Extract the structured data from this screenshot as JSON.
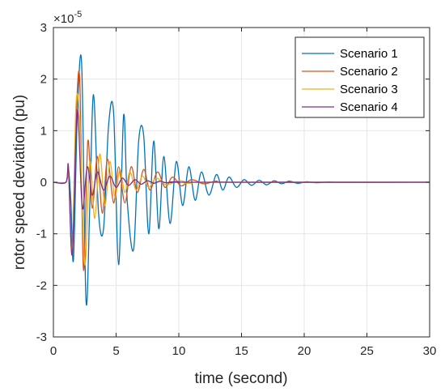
{
  "chart_data": {
    "type": "line",
    "xlabel": "time (second)",
    "ylabel": "rotor speed deviation (pu)",
    "exponent_label": "×10",
    "exponent_power": "-5",
    "xlim": [
      0,
      30
    ],
    "ylim": [
      -3,
      3
    ],
    "xticks": [
      "0",
      "5",
      "10",
      "15",
      "20",
      "25",
      "30"
    ],
    "yticks": [
      "-3",
      "-2",
      "-1",
      "0",
      "1",
      "2",
      "3"
    ],
    "grid": true,
    "legend_position": "top-right",
    "series": [
      {
        "name": "Scenario 1",
        "color": "#0072BD",
        "x": [
          0,
          1.0,
          1.2,
          1.4,
          1.6,
          1.9,
          2.25,
          2.6,
          2.9,
          3.2,
          3.6,
          4.0,
          4.4,
          4.8,
          5.2,
          5.6,
          5.9,
          6.4,
          6.8,
          7.2,
          7.6,
          8.0,
          8.4,
          8.8,
          9.3,
          9.8,
          10.3,
          10.8,
          11.3,
          11.8,
          12.4,
          13.0,
          13.5,
          14.0,
          14.6,
          15.2,
          15.8,
          16.4,
          17.0,
          17.6,
          18.2,
          18.8,
          19.5,
          20.2,
          21.0,
          22.0,
          23.0,
          30
        ],
        "y": [
          0,
          0,
          0.25,
          -0.4,
          -1.5,
          1.2,
          2.3,
          -2.3,
          -0.5,
          1.7,
          -0.6,
          -0.9,
          1.1,
          1.35,
          -1.6,
          1.3,
          -0.4,
          -1.3,
          0.8,
          0.9,
          -1.0,
          0.8,
          -0.9,
          0.5,
          -0.8,
          0.4,
          -0.45,
          0.3,
          -0.35,
          0.2,
          -0.25,
          0.15,
          -0.15,
          0.1,
          -0.1,
          0.05,
          -0.06,
          0.04,
          -0.05,
          0.03,
          -0.03,
          0.02,
          -0.02,
          0.01,
          -0.01,
          0.005,
          0,
          0
        ]
      },
      {
        "name": "Scenario 2",
        "color": "#D95319",
        "x": [
          0,
          1.0,
          1.2,
          1.5,
          1.8,
          2.1,
          2.4,
          2.75,
          3.1,
          3.5,
          3.9,
          4.3,
          4.8,
          5.2,
          5.7,
          6.2,
          6.7,
          7.2,
          7.7,
          8.3,
          8.9,
          9.5,
          10.2,
          11.0,
          12.0,
          13.0,
          14.5,
          30
        ],
        "y": [
          0,
          0,
          0.2,
          -1.4,
          1.2,
          2.0,
          -1.7,
          0.8,
          -0.5,
          0.5,
          -0.6,
          0.45,
          -0.4,
          0.3,
          -0.4,
          0.3,
          -0.2,
          0.25,
          -0.15,
          0.2,
          -0.1,
          0.1,
          -0.07,
          0.05,
          -0.03,
          0.02,
          0,
          0
        ]
      },
      {
        "name": "Scenario 3",
        "color": "#EDB120",
        "x": [
          0,
          1.0,
          1.2,
          1.5,
          1.8,
          2.1,
          2.5,
          2.9,
          3.3,
          3.7,
          4.1,
          4.5,
          4.9,
          5.3,
          5.7,
          6.1,
          6.6,
          7.1,
          7.6,
          8.2,
          9.0,
          10.0,
          11.0,
          12.0,
          30
        ],
        "y": [
          0,
          0,
          0.2,
          -1.3,
          1.5,
          1.2,
          -1.6,
          0.4,
          -0.7,
          0.55,
          -0.45,
          0.4,
          -0.3,
          0.25,
          -0.2,
          0.2,
          -0.15,
          0.12,
          -0.1,
          0.08,
          -0.05,
          0.03,
          -0.02,
          0,
          0
        ]
      },
      {
        "name": "Scenario 4",
        "color": "#7E2F8E",
        "x": [
          0,
          1.0,
          1.2,
          1.5,
          1.9,
          2.3,
          2.7,
          3.1,
          3.5,
          4.0,
          4.5,
          5.0,
          5.5,
          6.0,
          6.5,
          7.0,
          7.5,
          8.0,
          8.5,
          9.0,
          10.0,
          11.0,
          30
        ],
        "y": [
          0,
          0,
          0.3,
          -1.4,
          1.4,
          -0.5,
          0.3,
          -0.25,
          0.2,
          -0.15,
          0.12,
          -0.1,
          0.08,
          -0.06,
          0.05,
          -0.04,
          0.03,
          -0.02,
          0.02,
          -0.01,
          0.01,
          0,
          0
        ]
      }
    ]
  }
}
